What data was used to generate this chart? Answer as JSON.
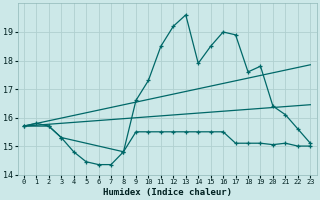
{
  "background_color": "#cce8e8",
  "grid_color": "#b0d0d0",
  "line_color": "#006868",
  "xlabel": "Humidex (Indice chaleur)",
  "xlim": [
    -0.5,
    23.5
  ],
  "ylim": [
    14,
    20
  ],
  "yticks": [
    14,
    15,
    16,
    17,
    18,
    19
  ],
  "xticks": [
    0,
    1,
    2,
    3,
    4,
    5,
    6,
    7,
    8,
    9,
    10,
    11,
    12,
    13,
    14,
    15,
    16,
    17,
    18,
    19,
    20,
    21,
    22,
    23
  ],
  "series1_x": [
    0,
    1,
    2,
    3,
    4,
    5,
    6,
    7,
    8,
    9,
    10,
    11,
    12,
    13,
    14,
    15,
    16,
    17,
    18,
    19,
    20,
    21,
    22,
    23
  ],
  "series1_y": [
    15.7,
    15.8,
    15.7,
    15.3,
    14.8,
    14.45,
    14.35,
    14.35,
    14.8,
    15.5,
    15.5,
    15.5,
    15.5,
    15.5,
    15.5,
    15.5,
    15.5,
    15.1,
    15.1,
    15.1,
    15.05,
    15.1,
    15.0,
    15.0
  ],
  "series2_x": [
    0,
    2,
    3,
    8,
    9,
    10,
    11,
    12,
    13,
    14,
    15,
    16,
    17,
    18,
    19,
    20,
    21,
    22,
    23
  ],
  "series2_y": [
    15.7,
    15.7,
    15.3,
    14.8,
    16.6,
    17.3,
    18.5,
    19.2,
    19.6,
    17.9,
    18.5,
    19.0,
    18.9,
    17.6,
    17.8,
    16.4,
    16.1,
    15.6,
    15.1
  ],
  "series3_x": [
    0,
    23
  ],
  "series3_y": [
    15.7,
    17.85
  ],
  "series4_x": [
    0,
    23
  ],
  "series4_y": [
    15.7,
    16.45
  ]
}
